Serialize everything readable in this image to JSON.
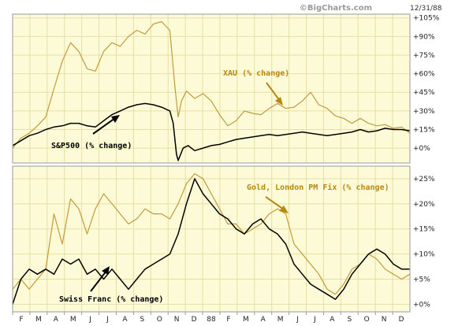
{
  "header": {
    "credit": "©BigCharts.com",
    "date": "12/31/88"
  },
  "colors": {
    "plot_bg": "#fdfbd7",
    "grid": "#e6dfa3",
    "frame": "#9a9a9a",
    "gold_series": "#c39a3a",
    "black_series": "#000000",
    "annotation_gold": "#b8870f"
  },
  "chart_data": [
    {
      "type": "line",
      "title": "",
      "y_unit": "% change",
      "ylim": [
        -12,
        108
      ],
      "yticks": [
        "+105%",
        "+90%",
        "+75%",
        "+60%",
        "+45%",
        "+30%",
        "+15%",
        "+0%"
      ],
      "ytick_values": [
        105,
        90,
        75,
        60,
        45,
        30,
        15,
        0
      ],
      "grid": true,
      "annotations": [
        {
          "text": "XAU (% change)",
          "color": "gold"
        },
        {
          "text": "S&P500 (% change)",
          "color": "black"
        }
      ],
      "series": [
        {
          "name": "XAU (% change)",
          "color": "gold",
          "points": [
            [
              0,
              0
            ],
            [
              0.5,
              8
            ],
            [
              1,
              12
            ],
            [
              1.5,
              18
            ],
            [
              2,
              25
            ],
            [
              2.5,
              48
            ],
            [
              3,
              70
            ],
            [
              3.5,
              85
            ],
            [
              4,
              78
            ],
            [
              4.5,
              64
            ],
            [
              5,
              62
            ],
            [
              5.5,
              78
            ],
            [
              6,
              85
            ],
            [
              6.5,
              82
            ],
            [
              7,
              90
            ],
            [
              7.5,
              95
            ],
            [
              8,
              92
            ],
            [
              8.5,
              100
            ],
            [
              9,
              102
            ],
            [
              9.5,
              95
            ],
            [
              9.8,
              50
            ],
            [
              10,
              25
            ],
            [
              10.2,
              38
            ],
            [
              10.5,
              46
            ],
            [
              11,
              40
            ],
            [
              11.5,
              44
            ],
            [
              12,
              38
            ],
            [
              12.5,
              27
            ],
            [
              13,
              18
            ],
            [
              13.5,
              22
            ],
            [
              14,
              30
            ],
            [
              14.5,
              28
            ],
            [
              15,
              27
            ],
            [
              15.5,
              32
            ],
            [
              16,
              36
            ],
            [
              16.5,
              32
            ],
            [
              17,
              33
            ],
            [
              17.5,
              38
            ],
            [
              18,
              45
            ],
            [
              18.5,
              35
            ],
            [
              19,
              32
            ],
            [
              19.5,
              26
            ],
            [
              20,
              24
            ],
            [
              20.5,
              20
            ],
            [
              21,
              24
            ],
            [
              21.5,
              20
            ],
            [
              22,
              18
            ],
            [
              22.5,
              19
            ],
            [
              23,
              16
            ],
            [
              23.5,
              17
            ],
            [
              24,
              12
            ]
          ]
        },
        {
          "name": "S&P500 (% change)",
          "color": "black",
          "points": [
            [
              0,
              2
            ],
            [
              0.5,
              6
            ],
            [
              1,
              10
            ],
            [
              1.5,
              12
            ],
            [
              2,
              15
            ],
            [
              2.5,
              17
            ],
            [
              3,
              18
            ],
            [
              3.5,
              20
            ],
            [
              4,
              20
            ],
            [
              4.5,
              18
            ],
            [
              5,
              17
            ],
            [
              5.5,
              22
            ],
            [
              6,
              27
            ],
            [
              6.5,
              30
            ],
            [
              7,
              33
            ],
            [
              7.5,
              35
            ],
            [
              8,
              36
            ],
            [
              8.5,
              35
            ],
            [
              9,
              33
            ],
            [
              9.5,
              30
            ],
            [
              9.7,
              20
            ],
            [
              9.9,
              -5
            ],
            [
              10,
              -10
            ],
            [
              10.3,
              0
            ],
            [
              10.6,
              2
            ],
            [
              11,
              -2
            ],
            [
              11.5,
              0
            ],
            [
              12,
              2
            ],
            [
              12.5,
              3
            ],
            [
              13,
              5
            ],
            [
              13.5,
              7
            ],
            [
              14,
              8
            ],
            [
              14.5,
              9
            ],
            [
              15,
              10
            ],
            [
              15.5,
              11
            ],
            [
              16,
              10
            ],
            [
              16.5,
              11
            ],
            [
              17,
              12
            ],
            [
              17.5,
              13
            ],
            [
              18,
              12
            ],
            [
              18.5,
              11
            ],
            [
              19,
              10
            ],
            [
              19.5,
              11
            ],
            [
              20,
              12
            ],
            [
              20.5,
              13
            ],
            [
              21,
              15
            ],
            [
              21.5,
              13
            ],
            [
              22,
              14
            ],
            [
              22.5,
              16
            ],
            [
              23,
              15
            ],
            [
              23.5,
              15
            ],
            [
              24,
              14
            ]
          ]
        }
      ]
    },
    {
      "type": "line",
      "title": "",
      "y_unit": "% change",
      "ylim": [
        -1.5,
        27.5
      ],
      "yticks": [
        "+25%",
        "+20%",
        "+15%",
        "+10%",
        "+5%",
        "+0%"
      ],
      "ytick_values": [
        25,
        20,
        15,
        10,
        5,
        0
      ],
      "grid": true,
      "annotations": [
        {
          "text": "Gold, London PM Fix (% change)",
          "color": "gold"
        },
        {
          "text": "Swiss Franc (% change)",
          "color": "black"
        }
      ],
      "series": [
        {
          "name": "Gold, London PM Fix (% change)",
          "color": "gold",
          "points": [
            [
              0,
              3
            ],
            [
              0.5,
              5
            ],
            [
              1,
              3
            ],
            [
              1.5,
              5
            ],
            [
              2,
              7
            ],
            [
              2.5,
              18
            ],
            [
              3,
              12
            ],
            [
              3.5,
              21
            ],
            [
              4,
              19
            ],
            [
              4.5,
              14
            ],
            [
              5,
              19
            ],
            [
              5.5,
              22
            ],
            [
              6,
              20
            ],
            [
              6.5,
              18
            ],
            [
              7,
              16
            ],
            [
              7.5,
              17
            ],
            [
              8,
              19
            ],
            [
              8.5,
              18
            ],
            [
              9,
              18
            ],
            [
              9.5,
              17
            ],
            [
              10,
              20
            ],
            [
              10.5,
              24
            ],
            [
              11,
              26
            ],
            [
              11.5,
              25
            ],
            [
              12,
              22
            ],
            [
              12.5,
              19
            ],
            [
              13,
              16
            ],
            [
              13.5,
              16
            ],
            [
              14,
              14
            ],
            [
              14.5,
              15
            ],
            [
              15,
              16
            ],
            [
              15.5,
              18
            ],
            [
              16,
              19
            ],
            [
              16.5,
              18
            ],
            [
              17,
              12
            ],
            [
              17.5,
              10
            ],
            [
              18,
              8
            ],
            [
              18.5,
              6
            ],
            [
              19,
              3
            ],
            [
              19.5,
              2
            ],
            [
              20,
              4
            ],
            [
              20.5,
              7
            ],
            [
              21,
              8
            ],
            [
              21.5,
              10
            ],
            [
              22,
              9
            ],
            [
              22.5,
              7
            ],
            [
              23,
              6
            ],
            [
              23.5,
              5
            ],
            [
              24,
              6
            ]
          ]
        },
        {
          "name": "Swiss Franc (% change)",
          "color": "black",
          "points": [
            [
              0,
              0
            ],
            [
              0.5,
              5
            ],
            [
              1,
              7
            ],
            [
              1.5,
              6
            ],
            [
              2,
              7
            ],
            [
              2.5,
              6
            ],
            [
              3,
              9
            ],
            [
              3.5,
              8
            ],
            [
              4,
              9
            ],
            [
              4.5,
              6
            ],
            [
              5,
              7
            ],
            [
              5.5,
              5
            ],
            [
              6,
              7
            ],
            [
              6.5,
              5
            ],
            [
              7,
              3
            ],
            [
              7.5,
              5
            ],
            [
              8,
              7
            ],
            [
              8.5,
              8
            ],
            [
              9,
              9
            ],
            [
              9.5,
              10
            ],
            [
              10,
              14
            ],
            [
              10.5,
              20
            ],
            [
              11,
              25
            ],
            [
              11.5,
              22
            ],
            [
              12,
              20
            ],
            [
              12.5,
              18
            ],
            [
              13,
              17
            ],
            [
              13.5,
              15
            ],
            [
              14,
              14
            ],
            [
              14.5,
              16
            ],
            [
              15,
              17
            ],
            [
              15.5,
              15
            ],
            [
              16,
              14
            ],
            [
              16.5,
              12
            ],
            [
              17,
              8
            ],
            [
              17.5,
              6
            ],
            [
              18,
              4
            ],
            [
              18.5,
              3
            ],
            [
              19,
              2
            ],
            [
              19.5,
              1
            ],
            [
              20,
              3
            ],
            [
              20.5,
              6
            ],
            [
              21,
              8
            ],
            [
              21.5,
              10
            ],
            [
              22,
              11
            ],
            [
              22.5,
              10
            ],
            [
              23,
              8
            ],
            [
              23.5,
              7
            ],
            [
              24,
              7
            ]
          ]
        }
      ]
    }
  ],
  "x_axis": {
    "labels": [
      "F",
      "M",
      "A",
      "M",
      "J",
      "J",
      "A",
      "S",
      "O",
      "N",
      "D",
      "88",
      "F",
      "M",
      "A",
      "M",
      "J",
      "J",
      "A",
      "S",
      "O",
      "N",
      "D"
    ]
  }
}
